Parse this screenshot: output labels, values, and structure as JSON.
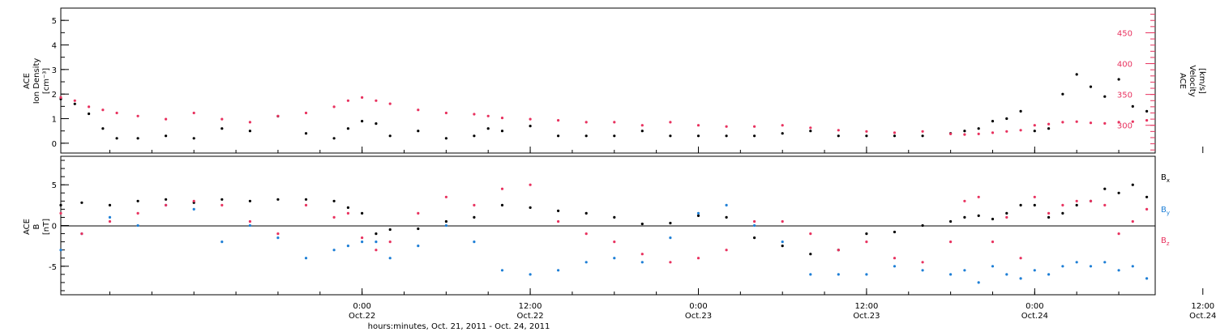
{
  "colors": {
    "density": "#000000",
    "velocity": "#e8325f",
    "bx": "#000000",
    "by": "#1e7fd6",
    "bz": "#e8325f"
  },
  "chart_data": [
    {
      "type": "scatter",
      "panel": "plasma",
      "y_left_label": [
        "ACE",
        "Ion Density",
        "[cm⁻³]"
      ],
      "y_right_label": [
        "ACE",
        "Velocity",
        "[km/s]"
      ],
      "x_range_hours": [
        -21.5,
        56.6
      ],
      "y_left_range": [
        -0.4,
        5.5
      ],
      "y_left_ticks": [
        "0",
        "1",
        "2",
        "3",
        "4",
        "5"
      ],
      "y_right_range": [
        255,
        490
      ],
      "y_right_ticks": [
        "300",
        "350",
        "400",
        "450"
      ],
      "series": [
        {
          "axis": "left",
          "x": [
            -21.5,
            -20.5,
            -19.5,
            -18.5,
            -17.5,
            -16,
            -14,
            -12,
            -10,
            -8,
            -6,
            -4,
            -2,
            -1,
            0,
            1,
            2,
            4,
            6,
            8,
            9,
            10,
            12,
            14,
            16,
            18,
            20,
            22,
            24,
            26,
            28,
            30,
            32,
            34,
            36,
            38,
            40,
            42,
            43,
            44,
            45,
            46,
            47,
            48,
            49,
            50,
            51,
            52,
            53,
            54,
            55,
            56,
            57,
            58,
            59,
            60,
            61,
            62,
            63,
            64,
            65,
            66,
            67,
            68,
            69,
            70,
            71,
            72,
            73,
            74,
            75,
            76,
            77
          ],
          "y": [
            1.8,
            1.6,
            1.2,
            0.6,
            0.2,
            0.2,
            0.3,
            0.2,
            0.6,
            0.5,
            1.1,
            0.4,
            0.2,
            0.6,
            0.9,
            0.8,
            0.3,
            0.5,
            0.2,
            0.3,
            0.6,
            0.5,
            0.7,
            0.3,
            0.3,
            0.3,
            0.5,
            0.3,
            0.3,
            0.3,
            0.3,
            0.4,
            0.5,
            0.3,
            0.3,
            0.3,
            0.3,
            0.4,
            0.5,
            0.6,
            0.9,
            1.0,
            1.3,
            0.5,
            0.6,
            2.0,
            2.8,
            2.3,
            1.9,
            2.6,
            1.5,
            1.3,
            0.7,
            0.4,
            0.2,
            0.2,
            0.3,
            1.0,
            1.3,
            1.5,
            2.4,
            2.2,
            1.8,
            0.8,
            1.6,
            1.4,
            1.3,
            1.4,
            1.2,
            1.5,
            1.1,
            1.2,
            1.4
          ]
        },
        {
          "axis": "right",
          "x": [
            -21.5,
            -20.5,
            -19.5,
            -18.5,
            -17.5,
            -16,
            -14,
            -12,
            -10,
            -8,
            -6,
            -4,
            -2,
            -1,
            0,
            1,
            2,
            4,
            6,
            8,
            9,
            10,
            12,
            14,
            16,
            18,
            20,
            22,
            24,
            26,
            28,
            30,
            32,
            34,
            36,
            38,
            40,
            42,
            43,
            44,
            45,
            46,
            47,
            48,
            49,
            50,
            51,
            52,
            53,
            54,
            55,
            56,
            57,
            58,
            59,
            60,
            61,
            62,
            63,
            64,
            65,
            66,
            67,
            68,
            69,
            70,
            71,
            72,
            73,
            74,
            75,
            76,
            77
          ],
          "y": [
            345,
            340,
            330,
            325,
            320,
            315,
            310,
            320,
            310,
            305,
            315,
            320,
            330,
            340,
            345,
            340,
            335,
            325,
            320,
            318,
            315,
            312,
            310,
            308,
            305,
            305,
            300,
            305,
            300,
            298,
            298,
            300,
            296,
            292,
            290,
            288,
            290,
            286,
            285,
            286,
            288,
            290,
            292,
            300,
            302,
            305,
            306,
            304,
            303,
            305,
            306,
            308,
            309,
            342,
            346,
            344,
            340,
            346,
            348,
            350,
            352,
            348,
            340,
            338,
            335,
            336,
            338,
            334,
            332,
            333,
            332,
            330,
            331
          ]
        }
      ]
    },
    {
      "type": "scatter",
      "panel": "magnetic-field",
      "y_label": [
        "ACE",
        "B",
        "[nT]"
      ],
      "x_range_hours": [
        -21.5,
        56.6
      ],
      "y_range": [
        -8.5,
        8.5
      ],
      "y_ticks": [
        "-5",
        "0",
        "5"
      ],
      "x_ticks": [
        {
          "hour": 0,
          "label": [
            "0:00",
            "Oct.22"
          ]
        },
        {
          "hour": 12,
          "label": [
            "12:00",
            "Oct.22"
          ]
        },
        {
          "hour": 24,
          "label": [
            "0:00",
            "Oct.23"
          ]
        },
        {
          "hour": 36,
          "label": [
            "12:00",
            "Oct.23"
          ]
        },
        {
          "hour": 48,
          "label": [
            "0:00",
            "Oct.24"
          ]
        },
        {
          "hour": 60,
          "label": [
            "12:00",
            "Oct.24"
          ]
        }
      ],
      "xlabel": "hours:minutes, Oct. 21, 2011 - Oct. 24, 2011",
      "series": [
        {
          "name": "Bx",
          "x": [
            -21.5,
            -20,
            -18,
            -16,
            -14,
            -12,
            -10,
            -8,
            -6,
            -4,
            -2,
            -1,
            0,
            1,
            2,
            4,
            6,
            8,
            10,
            12,
            14,
            16,
            18,
            20,
            22,
            24,
            26,
            28,
            30,
            32,
            34,
            36,
            38,
            40,
            42,
            43,
            44,
            45,
            46,
            47,
            48,
            49,
            50,
            51,
            52,
            53,
            54,
            55,
            56
          ],
          "y": [
            2.5,
            2.8,
            2.5,
            3.0,
            3.2,
            2.8,
            3.2,
            3.0,
            3.2,
            3.2,
            3.0,
            2.2,
            1.5,
            -1.0,
            -0.5,
            -0.4,
            0.5,
            1.0,
            2.5,
            2.2,
            1.8,
            1.5,
            1.0,
            0.2,
            0.3,
            1.2,
            1.0,
            -1.5,
            -2.5,
            -3.5,
            -3.0,
            -1.0,
            -0.8,
            0.0,
            0.5,
            1.0,
            1.2,
            0.8,
            1.5,
            2.5,
            2.5,
            1.0,
            1.5,
            2.5,
            3.0,
            4.5,
            4.0,
            5.0,
            3.5
          ]
        },
        {
          "name": "By",
          "x": [
            -21.5,
            -20,
            -18,
            -16,
            -14,
            -12,
            -10,
            -8,
            -6,
            -4,
            -2,
            -1,
            0,
            1,
            2,
            4,
            6,
            8,
            10,
            12,
            14,
            16,
            18,
            20,
            22,
            24,
            26,
            28,
            30,
            32,
            34,
            36,
            38,
            40,
            42,
            43,
            44,
            45,
            46,
            47,
            48,
            49,
            50,
            51,
            52,
            53,
            54,
            55,
            56
          ],
          "y": [
            -3.0,
            -1.0,
            1.0,
            0.0,
            2.5,
            2.0,
            -2.0,
            0.0,
            -1.5,
            -4.0,
            -3.0,
            -2.5,
            -2.0,
            -2.0,
            -4.0,
            -2.5,
            0.0,
            -2.0,
            -5.5,
            -6.0,
            -5.5,
            -4.5,
            -4.0,
            -4.5,
            -1.5,
            1.5,
            2.5,
            0.0,
            -2.0,
            -6.0,
            -6.0,
            -6.0,
            -5.0,
            -5.5,
            -6.0,
            -5.5,
            -7.0,
            -5.0,
            -6.0,
            -6.5,
            -5.5,
            -6.0,
            -5.0,
            -4.5,
            -5.0,
            -4.5,
            -5.5,
            -5.0,
            -6.5
          ]
        },
        {
          "name": "Bz",
          "x": [
            -21.5,
            -20,
            -18,
            -16,
            -14,
            -12,
            -10,
            -8,
            -6,
            -4,
            -2,
            -1,
            0,
            1,
            2,
            4,
            6,
            8,
            10,
            12,
            14,
            16,
            18,
            20,
            22,
            24,
            26,
            28,
            30,
            32,
            34,
            36,
            38,
            40,
            42,
            43,
            44,
            45,
            46,
            47,
            48,
            49,
            50,
            51,
            52,
            53,
            54,
            55,
            56
          ],
          "y": [
            1.5,
            -1.0,
            0.5,
            1.5,
            2.5,
            3.0,
            2.5,
            0.5,
            -1.0,
            2.5,
            1.0,
            1.5,
            -1.5,
            -3.0,
            -2.0,
            1.5,
            3.5,
            2.5,
            4.5,
            5.0,
            0.5,
            -1.0,
            -2.0,
            -3.5,
            -4.5,
            -4.0,
            -3.0,
            0.5,
            0.5,
            -1.0,
            -3.0,
            -2.0,
            -4.0,
            -4.5,
            -2.0,
            3.0,
            3.5,
            -2.0,
            1.0,
            -4.0,
            3.5,
            1.5,
            2.5,
            3.0,
            3.0,
            2.5,
            -1.0,
            0.5,
            2.0
          ]
        }
      ]
    }
  ]
}
